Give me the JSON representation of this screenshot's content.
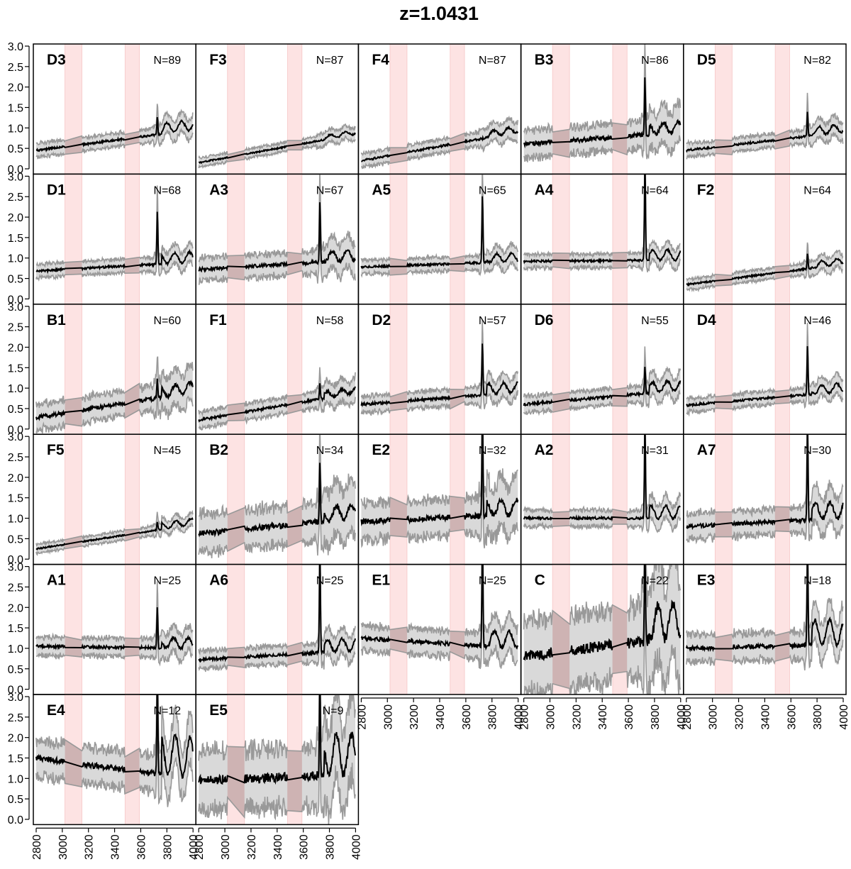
{
  "title": "z=1.0431",
  "chart_data": {
    "type": "line",
    "title": "z=1.0431",
    "layout": "small-multiples",
    "xlim": [
      2800,
      4000
    ],
    "ylim": [
      0,
      3
    ],
    "x_ticks": [
      "2800",
      "3000",
      "3200",
      "3400",
      "3600",
      "3800",
      "4000"
    ],
    "y_ticks": [
      "0.0",
      "0.5",
      "1.0",
      "1.5",
      "2.0",
      "2.5",
      "3.0"
    ],
    "shaded_bands": [
      [
        3020,
        3150
      ],
      [
        3480,
        3590
      ]
    ],
    "line_peak_x": 3727,
    "colors": {
      "line": "#000000",
      "envelope": "#999999",
      "envelope_fill": "#d9d9d9",
      "gap_fill": "#c9a5a5",
      "band": "#fde3e3"
    },
    "panels": [
      {
        "label": "D3",
        "n": "N=89",
        "start": 0.45,
        "end": 0.95,
        "noise": 0.15,
        "peak": 0.45,
        "bump": 0.25
      },
      {
        "label": "F3",
        "n": "N=87",
        "start": 0.15,
        "end": 0.85,
        "noise": 0.1,
        "peak": 0.0,
        "bump": 0.1
      },
      {
        "label": "F4",
        "n": "N=87",
        "start": 0.2,
        "end": 0.9,
        "noise": 0.15,
        "peak": 0.0,
        "bump": 0.15
      },
      {
        "label": "B3",
        "n": "N=86",
        "start": 0.6,
        "end": 0.9,
        "noise": 0.3,
        "peak": 1.4,
        "bump": 0.25
      },
      {
        "label": "D5",
        "n": "N=82",
        "start": 0.45,
        "end": 0.9,
        "noise": 0.15,
        "peak": 0.6,
        "bump": 0.2
      },
      {
        "label": "D1",
        "n": "N=68",
        "start": 0.68,
        "end": 0.9,
        "noise": 0.15,
        "peak": 1.35,
        "bump": 0.25
      },
      {
        "label": "A3",
        "n": "N=67",
        "start": 0.72,
        "end": 0.95,
        "noise": 0.25,
        "peak": 1.55,
        "bump": 0.25
      },
      {
        "label": "A5",
        "n": "N=65",
        "start": 0.78,
        "end": 0.92,
        "noise": 0.15,
        "peak": 1.7,
        "bump": 0.2
      },
      {
        "label": "A4",
        "n": "N=64",
        "start": 0.92,
        "end": 0.95,
        "noise": 0.15,
        "peak": 2.5,
        "bump": 0.25
      },
      {
        "label": "F2",
        "n": "N=64",
        "start": 0.35,
        "end": 0.85,
        "noise": 0.12,
        "peak": 0.4,
        "bump": 0.15
      },
      {
        "label": "B1",
        "n": "N=60",
        "start": 0.28,
        "end": 0.9,
        "noise": 0.28,
        "peak": 0.5,
        "bump": 0.25
      },
      {
        "label": "F1",
        "n": "N=58",
        "start": 0.22,
        "end": 0.88,
        "noise": 0.18,
        "peak": 0.4,
        "bump": 0.15
      },
      {
        "label": "D2",
        "n": "N=57",
        "start": 0.6,
        "end": 0.9,
        "noise": 0.18,
        "peak": 1.3,
        "bump": 0.25
      },
      {
        "label": "D6",
        "n": "N=55",
        "start": 0.6,
        "end": 0.95,
        "noise": 0.18,
        "peak": 0.65,
        "bump": 0.25
      },
      {
        "label": "D4",
        "n": "N=46",
        "start": 0.58,
        "end": 0.92,
        "noise": 0.15,
        "peak": 1.2,
        "bump": 0.2
      },
      {
        "label": "F5",
        "n": "N=45",
        "start": 0.25,
        "end": 0.85,
        "noise": 0.1,
        "peak": 0.2,
        "bump": 0.15
      },
      {
        "label": "B2",
        "n": "N=34",
        "start": 0.62,
        "end": 1.0,
        "noise": 0.42,
        "peak": 1.5,
        "bump": 0.35
      },
      {
        "label": "E2",
        "n": "N=32",
        "start": 0.92,
        "end": 1.1,
        "noise": 0.4,
        "peak": 2.7,
        "bump": 0.35
      },
      {
        "label": "A2",
        "n": "N=31",
        "start": 1.0,
        "end": 1.0,
        "noise": 0.18,
        "peak": 2.4,
        "bump": 0.3
      },
      {
        "label": "A7",
        "n": "N=30",
        "start": 0.8,
        "end": 1.0,
        "noise": 0.28,
        "peak": 2.4,
        "bump": 0.4
      },
      {
        "label": "A1",
        "n": "N=25",
        "start": 1.05,
        "end": 1.0,
        "noise": 0.2,
        "peak": 1.0,
        "bump": 0.25
      },
      {
        "label": "A6",
        "n": "N=25",
        "start": 0.72,
        "end": 0.95,
        "noise": 0.2,
        "peak": 2.6,
        "bump": 0.3
      },
      {
        "label": "E1",
        "n": "N=25",
        "start": 1.25,
        "end": 1.0,
        "noise": 0.28,
        "peak": 2.8,
        "bump": 0.4
      },
      {
        "label": "C",
        "n": "N=22",
        "start": 0.8,
        "end": 1.3,
        "noise": 0.8,
        "peak": 2.3,
        "bump": 0.8
      },
      {
        "label": "E3",
        "n": "N=18",
        "start": 1.0,
        "end": 1.1,
        "noise": 0.3,
        "peak": 2.4,
        "bump": 0.6
      },
      {
        "label": "E4",
        "n": "N=12",
        "start": 1.5,
        "end": 1.0,
        "noise": 0.4,
        "peak": 2.5,
        "bump": 1.0
      },
      {
        "label": "E5",
        "n": "N=9",
        "start": 0.95,
        "end": 1.1,
        "noise": 0.65,
        "peak": 2.3,
        "bump": 1.0
      }
    ]
  }
}
